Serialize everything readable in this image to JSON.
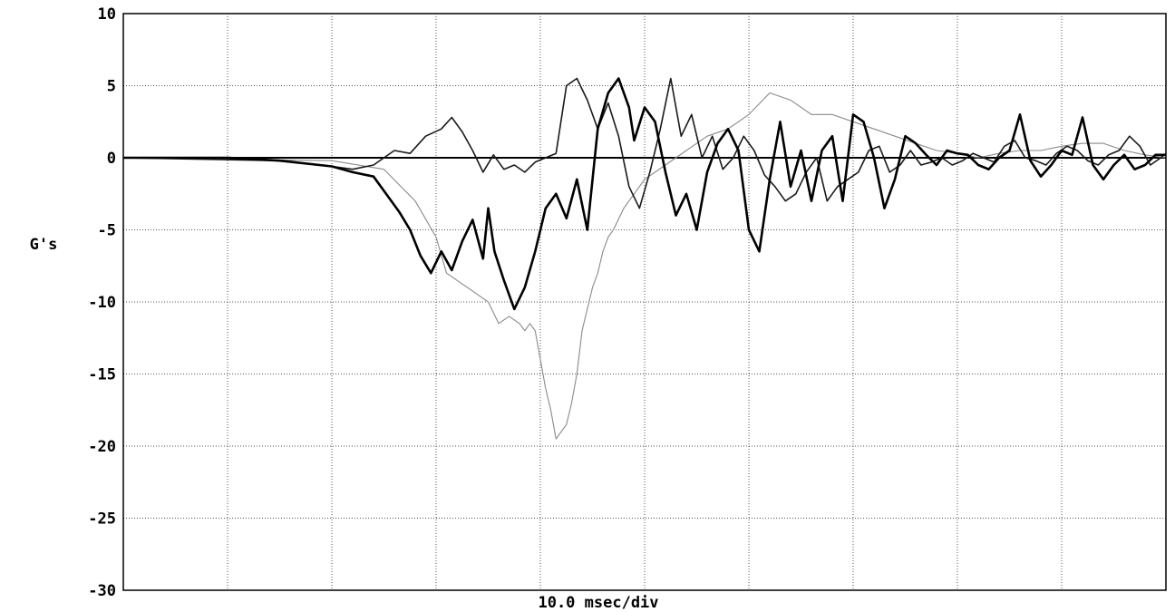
{
  "chart_data": {
    "type": "line",
    "title": "",
    "xlabel": "10.0 msec/div",
    "ylabel": "G's",
    "ylim": [
      -30,
      10
    ],
    "yticks": [
      10,
      5,
      0,
      -5,
      -10,
      -15,
      -20,
      -25,
      -30
    ],
    "ytick_labels": [
      "10",
      "5",
      "0",
      "-5",
      "-10",
      "-15",
      "-20",
      "-25",
      "-30"
    ],
    "x_divisions": 10,
    "xlim": [
      0,
      100
    ],
    "grid": true,
    "legend": "none",
    "colors": {
      "heavy": "#000000",
      "medium": "#1a1a1a",
      "light": "#8a8a8a",
      "zero": "#000000"
    },
    "series": [
      {
        "style": "heavy",
        "x": [
          0,
          10,
          15,
          20,
          22,
          24,
          25.5,
          26.5,
          27.5,
          28.5,
          29.5,
          30.5,
          31.5,
          32.5,
          33.5,
          34.5,
          35,
          35.6,
          36.5,
          37.5,
          38.5,
          39.5,
          40.5,
          41.5,
          42.5,
          43.5,
          44.5,
          45.5,
          46.5,
          47.5,
          48.5,
          49,
          50,
          51,
          52,
          53,
          54,
          55,
          56,
          57,
          58,
          59,
          60,
          61,
          62,
          63,
          64,
          65,
          66,
          67,
          68,
          69,
          70,
          71,
          72,
          73,
          74,
          75,
          76,
          77,
          78,
          79,
          80,
          81,
          82,
          83,
          84,
          85,
          86,
          87,
          88,
          89,
          90,
          91,
          92,
          93,
          94,
          95,
          96,
          97,
          98,
          99,
          100
        ],
        "y": [
          0,
          0,
          -0.2,
          -0.6,
          -1.0,
          -1.3,
          -2.8,
          -3.8,
          -5.0,
          -6.8,
          -8.0,
          -6.5,
          -7.8,
          -5.8,
          -4.3,
          -7.0,
          -3.5,
          -6.5,
          -8.5,
          -10.5,
          -9.0,
          -6.5,
          -3.5,
          -2.5,
          -4.2,
          -1.5,
          -5.0,
          2.0,
          4.5,
          5.5,
          3.5,
          1.2,
          3.5,
          2.5,
          -1.0,
          -4.0,
          -2.5,
          -5.0,
          -1.0,
          1.0,
          2.0,
          0.5,
          -5.0,
          -6.5,
          -1.5,
          2.5,
          -2.0,
          0.5,
          -3.0,
          0.5,
          1.5,
          -3.0,
          3.0,
          2.5,
          0.0,
          -3.5,
          -1.5,
          1.5,
          1.0,
          0.2,
          -0.5,
          0.5,
          0.3,
          0.2,
          -0.5,
          -0.8,
          0.0,
          0.5,
          3.0,
          -0.2,
          -1.3,
          -0.5,
          0.5,
          0.2,
          2.8,
          -0.5,
          -1.5,
          -0.5,
          0.2,
          -0.8,
          -0.5,
          0.2,
          0.2
        ]
      },
      {
        "style": "medium",
        "x": [
          0,
          15,
          20,
          22,
          24,
          26,
          27.5,
          29,
          30.5,
          31.5,
          32.5,
          33.5,
          34.5,
          35.5,
          36.5,
          37.5,
          38.5,
          39.5,
          40.5,
          41.5,
          42.5,
          43.5,
          44.5,
          45.5,
          46.5,
          47.5,
          48.5,
          49.5,
          50.5,
          51.5,
          52.5,
          53.5,
          54.5,
          55.5,
          56.5,
          57.5,
          58.5,
          59.5,
          60.5,
          61.5,
          62.5,
          63.5,
          64.5,
          65.5,
          66.5,
          67.5,
          68.5,
          69.5,
          70.5,
          71.5,
          72.5,
          73.5,
          74.5,
          75.5,
          76.5,
          77.5,
          78.5,
          79.5,
          80.5,
          81.5,
          82.5,
          83.5,
          84.5,
          85.5,
          86.5,
          87.5,
          88.5,
          89.5,
          90.5,
          91.5,
          92.5,
          93.5,
          94.5,
          95.5,
          96.5,
          97.5,
          98.5,
          99.5,
          100
        ],
        "y": [
          0,
          -0.2,
          -0.6,
          -0.8,
          -0.5,
          0.5,
          0.3,
          1.5,
          2.0,
          2.8,
          1.8,
          0.5,
          -1.0,
          0.2,
          -0.8,
          -0.5,
          -1.0,
          -0.3,
          0.0,
          0.3,
          5.0,
          5.5,
          4.0,
          2.0,
          3.8,
          1.5,
          -2.0,
          -3.5,
          -1.0,
          2.0,
          5.5,
          1.5,
          3.0,
          0.0,
          1.5,
          -0.8,
          0.0,
          1.5,
          0.5,
          -1.2,
          -2.0,
          -3.0,
          -2.5,
          -1.0,
          0.0,
          -3.0,
          -2.0,
          -1.5,
          -1.0,
          0.5,
          0.8,
          -1.0,
          -0.5,
          0.5,
          -0.5,
          -0.3,
          0.0,
          -0.5,
          -0.2,
          0.3,
          0.0,
          -0.3,
          0.8,
          1.2,
          0.0,
          -0.2,
          -0.5,
          0.3,
          0.8,
          0.5,
          -0.2,
          -0.5,
          0.2,
          0.5,
          1.5,
          0.8,
          -0.5,
          0.0,
          0.3
        ]
      },
      {
        "style": "light",
        "x": [
          0,
          20,
          25,
          28,
          30,
          31,
          32,
          33,
          34,
          35,
          36,
          37,
          38,
          38.5,
          39,
          39.5,
          40,
          40.5,
          41,
          41.5,
          42,
          42.5,
          43,
          43.5,
          44,
          44.5,
          45,
          45.5,
          46,
          46.5,
          47,
          48,
          49,
          50,
          52,
          54,
          56,
          58,
          60,
          62,
          64,
          66,
          68,
          70,
          72,
          74,
          76,
          78,
          80,
          82,
          84,
          86,
          88,
          90,
          92,
          94,
          96,
          98,
          100
        ],
        "y": [
          0,
          -0.2,
          -0.8,
          -3.0,
          -5.5,
          -8.0,
          -8.5,
          -9.0,
          -9.5,
          -10.0,
          -11.5,
          -11.0,
          -11.5,
          -12.0,
          -11.5,
          -12.0,
          -14.0,
          -16.0,
          -17.5,
          -19.5,
          -19.0,
          -18.5,
          -17.0,
          -15.0,
          -12.0,
          -10.5,
          -9.0,
          -8.0,
          -6.5,
          -5.5,
          -5.0,
          -3.5,
          -2.5,
          -1.5,
          -0.5,
          0.5,
          1.5,
          2.0,
          3.0,
          4.5,
          4.0,
          3.0,
          3.0,
          2.5,
          2.0,
          1.5,
          1.0,
          0.5,
          0.3,
          0.0,
          0.3,
          0.5,
          0.5,
          0.8,
          1.0,
          1.0,
          0.5,
          0.2,
          0.0
        ]
      }
    ]
  }
}
